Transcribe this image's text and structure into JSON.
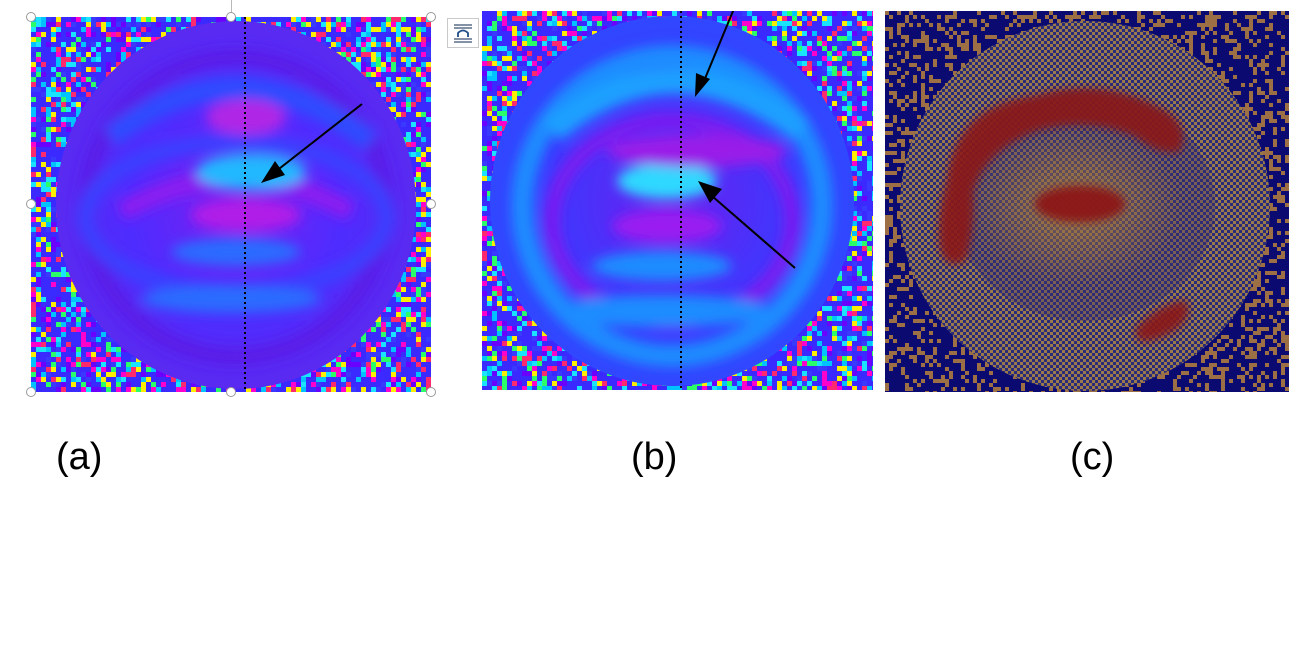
{
  "figure": {
    "panels": [
      {
        "id": "a",
        "caption": "(a)",
        "colormap": "rainbow-phase"
      },
      {
        "id": "b",
        "caption": "(b)",
        "colormap": "rainbow-phase"
      },
      {
        "id": "c",
        "caption": "(c)",
        "colormap": "blue-orange-overlay"
      }
    ]
  },
  "selection": {
    "active_panel": "a",
    "layout_options_icon": "wrap-text-icon"
  },
  "colors": {
    "noise": [
      "#ff2a6d",
      "#19e3ff",
      "#ffee00",
      "#6a00ff",
      "#00c2ff",
      "#ff00cc",
      "#2aff6a",
      "#3a3aff"
    ],
    "disk_base": "#4a24ff",
    "ring_cyan": "#19a8ff",
    "ring_magenta": "#9a1ef0",
    "overlay_red": "#8b1414",
    "overlay_blue": "#0a0a6e",
    "overlay_orange": "#c08a3a",
    "arrow": "#000000"
  }
}
